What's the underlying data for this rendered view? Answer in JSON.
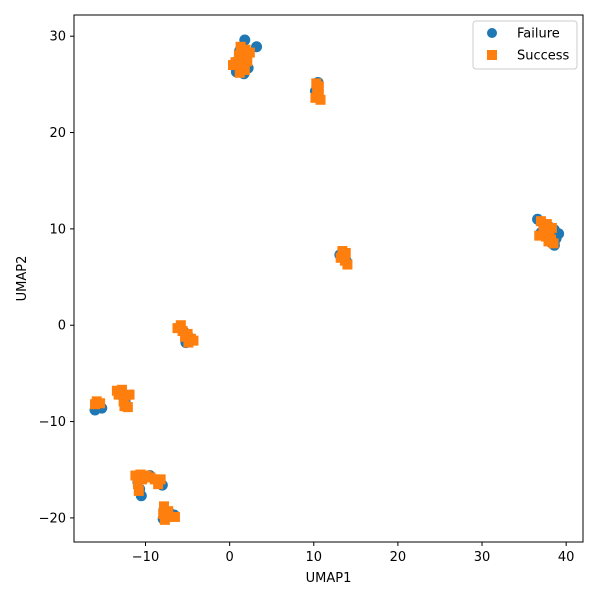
{
  "chart_data": {
    "type": "scatter",
    "xlabel": "UMAP1",
    "ylabel": "UMAP2",
    "xlim": [
      -18.5,
      42.0
    ],
    "ylim": [
      -22.5,
      32.2
    ],
    "xticks": [
      -10,
      0,
      10,
      20,
      30,
      40
    ],
    "yticks": [
      -20,
      -10,
      0,
      10,
      20,
      30
    ],
    "grid": false,
    "legend": "top-right",
    "series": [
      {
        "name": "Failure",
        "marker": "circle",
        "color": "#1f77b4",
        "points": [
          [
            1.8,
            29.6
          ],
          [
            3.2,
            28.9
          ],
          [
            1.2,
            28.5
          ],
          [
            2.0,
            28.0
          ],
          [
            1.0,
            27.5
          ],
          [
            1.5,
            26.9
          ],
          [
            2.2,
            26.7
          ],
          [
            0.8,
            26.3
          ],
          [
            1.7,
            26.1
          ],
          [
            10.5,
            25.2
          ],
          [
            10.2,
            24.3
          ],
          [
            10.7,
            23.5
          ],
          [
            36.6,
            11.0
          ],
          [
            37.2,
            10.6
          ],
          [
            38.0,
            10.2
          ],
          [
            38.6,
            9.9
          ],
          [
            39.1,
            9.5
          ],
          [
            38.8,
            9.0
          ],
          [
            37.6,
            9.3
          ],
          [
            38.2,
            8.6
          ],
          [
            38.6,
            8.3
          ],
          [
            37.0,
            9.6
          ],
          [
            13.1,
            7.3
          ],
          [
            13.6,
            7.1
          ],
          [
            13.9,
            6.6
          ],
          [
            -6.0,
            -0.2
          ],
          [
            -5.5,
            -0.6
          ],
          [
            -5.0,
            -1.0
          ],
          [
            -4.6,
            -1.5
          ],
          [
            -5.2,
            -1.8
          ],
          [
            -16.0,
            -8.8
          ],
          [
            -15.6,
            -8.4
          ],
          [
            -15.2,
            -8.6
          ],
          [
            -12.8,
            -7.3
          ],
          [
            -12.4,
            -8.1
          ],
          [
            -10.5,
            -17.7
          ],
          [
            -10.7,
            -17.0
          ],
          [
            -10.9,
            -16.3
          ],
          [
            -9.5,
            -15.6
          ],
          [
            -8.4,
            -16.1
          ],
          [
            -8.0,
            -16.6
          ],
          [
            -7.8,
            -19.1
          ],
          [
            -7.6,
            -19.8
          ],
          [
            -7.9,
            -20.1
          ],
          [
            -7.1,
            -19.5
          ],
          [
            -6.6,
            -19.7
          ]
        ]
      },
      {
        "name": "Success",
        "marker": "square",
        "color": "#ff7f0e",
        "points": [
          [
            1.3,
            28.9
          ],
          [
            1.9,
            28.6
          ],
          [
            2.4,
            28.3
          ],
          [
            1.1,
            28.0
          ],
          [
            1.6,
            27.6
          ],
          [
            2.1,
            27.4
          ],
          [
            0.7,
            27.3
          ],
          [
            0.4,
            27.0
          ],
          [
            1.3,
            26.8
          ],
          [
            1.8,
            26.5
          ],
          [
            1.2,
            26.2
          ],
          [
            10.3,
            25.1
          ],
          [
            10.6,
            24.8
          ],
          [
            10.4,
            24.3
          ],
          [
            10.6,
            23.9
          ],
          [
            10.2,
            23.6
          ],
          [
            10.8,
            23.4
          ],
          [
            37.0,
            10.8
          ],
          [
            37.7,
            10.5
          ],
          [
            38.3,
            10.1
          ],
          [
            37.3,
            9.9
          ],
          [
            38.0,
            9.6
          ],
          [
            36.8,
            9.3
          ],
          [
            37.6,
            9.2
          ],
          [
            38.2,
            8.9
          ],
          [
            38.5,
            8.5
          ],
          [
            37.9,
            8.7
          ],
          [
            13.4,
            7.7
          ],
          [
            13.8,
            7.5
          ],
          [
            13.2,
            7.0
          ],
          [
            13.7,
            6.7
          ],
          [
            14.0,
            6.3
          ],
          [
            -5.8,
            0.0
          ],
          [
            -6.2,
            -0.3
          ],
          [
            -5.6,
            -0.6
          ],
          [
            -5.0,
            -0.9
          ],
          [
            -5.3,
            -1.2
          ],
          [
            -4.6,
            -1.4
          ],
          [
            -4.3,
            -1.6
          ],
          [
            -4.9,
            -1.8
          ],
          [
            -15.8,
            -7.9
          ],
          [
            -16.0,
            -8.2
          ],
          [
            -15.4,
            -8.1
          ],
          [
            -13.4,
            -6.8
          ],
          [
            -12.8,
            -6.7
          ],
          [
            -13.2,
            -7.2
          ],
          [
            -12.3,
            -7.3
          ],
          [
            -11.9,
            -7.2
          ],
          [
            -12.6,
            -7.9
          ],
          [
            -12.5,
            -8.4
          ],
          [
            -12.1,
            -8.5
          ],
          [
            -11.2,
            -15.6
          ],
          [
            -10.6,
            -15.5
          ],
          [
            -9.9,
            -15.6
          ],
          [
            -10.4,
            -16.0
          ],
          [
            -10.9,
            -16.5
          ],
          [
            -9.4,
            -15.8
          ],
          [
            -8.9,
            -16.0
          ],
          [
            -8.2,
            -16.0
          ],
          [
            -8.5,
            -16.5
          ],
          [
            -10.8,
            -17.2
          ],
          [
            -7.8,
            -18.8
          ],
          [
            -7.3,
            -19.3
          ],
          [
            -7.9,
            -19.6
          ],
          [
            -7.0,
            -19.9
          ],
          [
            -6.5,
            -19.9
          ],
          [
            -7.7,
            -20.2
          ]
        ]
      }
    ]
  }
}
